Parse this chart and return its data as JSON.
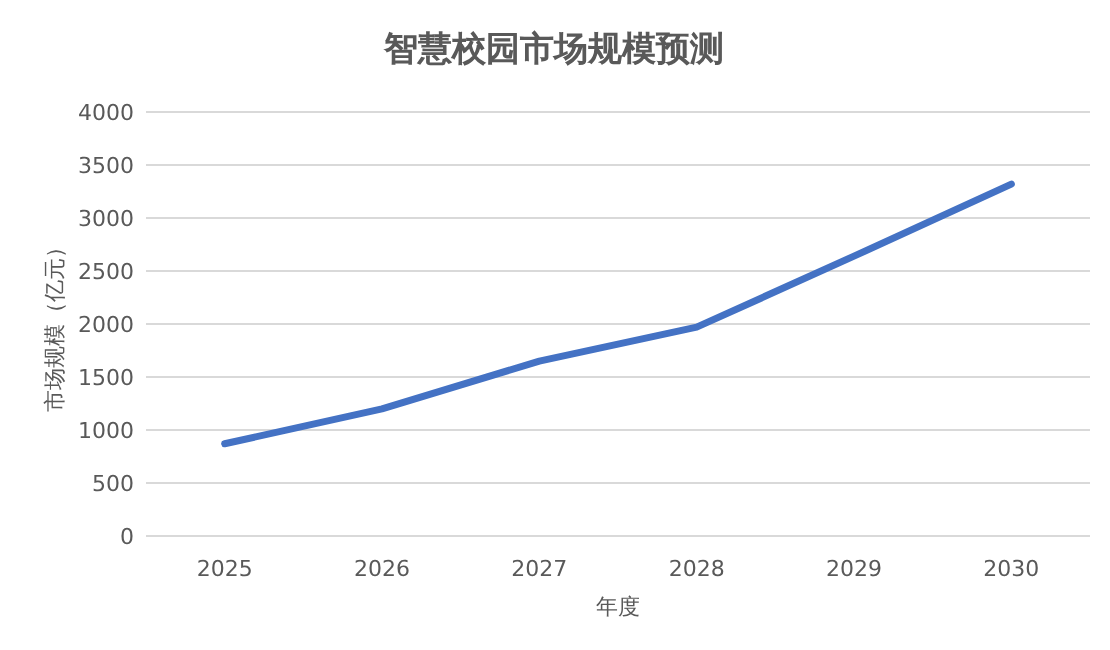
{
  "chart_data": {
    "type": "line",
    "title": "智慧校园市场规模预测",
    "xlabel": "年度",
    "ylabel": "市场规模（亿元）",
    "categories": [
      "2025",
      "2026",
      "2027",
      "2028",
      "2029",
      "2030"
    ],
    "series": [
      {
        "color": "#4472c4",
        "values": [
          870,
          1200,
          1650,
          1970,
          2640,
          3320
        ]
      }
    ],
    "ylim": [
      0,
      4000
    ],
    "yticks": [
      0,
      500,
      1000,
      1500,
      2000,
      2500,
      3000,
      3500,
      4000
    ],
    "grid": "y",
    "marker": "none",
    "line_style": "solid"
  }
}
